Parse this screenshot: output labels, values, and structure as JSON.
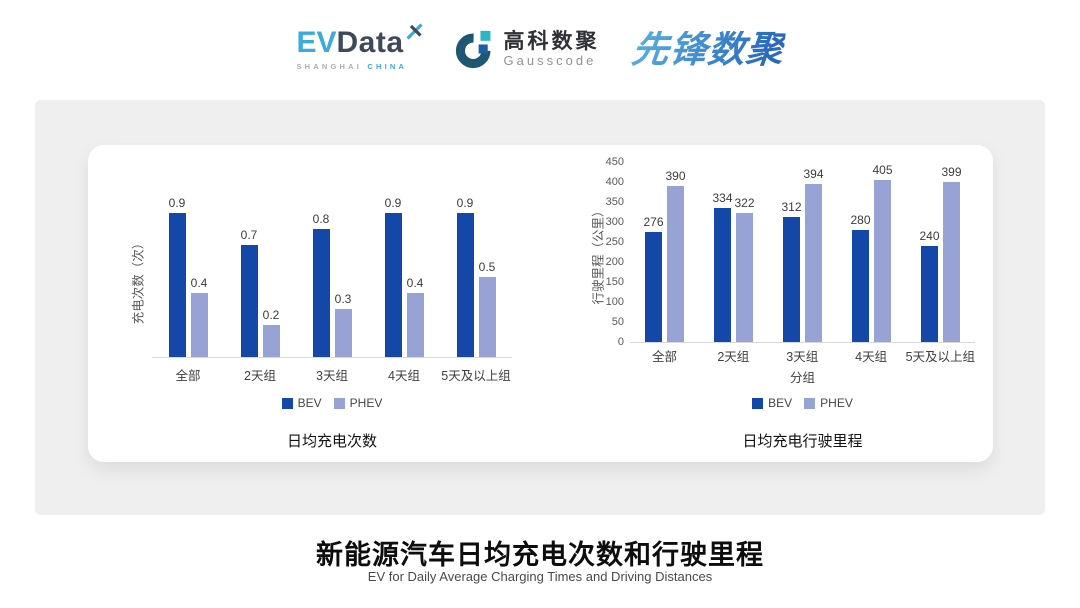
{
  "header": {
    "logos": {
      "evdata": {
        "ev": "EV",
        "data_word": "Data",
        "sub_left": "SHANGHAI",
        "sub_right": "CHINA"
      },
      "gausscode": {
        "cn": "高科数聚",
        "en": "Gausscode"
      },
      "pioneer": {
        "text": "先锋数聚"
      }
    }
  },
  "colors": {
    "bev": "#1347a8",
    "phev": "#98a3d5",
    "panel": "#efefef",
    "evdata_cyan": "#3aabdc",
    "evdata_dark": "#3f4a59",
    "gausscode_ring": "#1f5772",
    "gausscode_teal": "#2cb7c7",
    "gausscode_blue": "#1c5fa5",
    "pioneer_blue": "#2e79c9"
  },
  "footer": {
    "title": "新能源汽车日均充电次数和行驶里程",
    "subtitle": "EV for Daily Average Charging Times and Driving Distances"
  },
  "chart_data": [
    {
      "type": "bar",
      "title": "日均充电次数",
      "categories": [
        "全部",
        "2天组",
        "3天组",
        "4天组",
        "5天及以上组"
      ],
      "series": [
        {
          "name": "BEV",
          "values": [
            0.9,
            0.7,
            0.8,
            0.9,
            0.9
          ]
        },
        {
          "name": "PHEV",
          "values": [
            0.4,
            0.2,
            0.3,
            0.4,
            0.5
          ]
        }
      ],
      "xlabel": "",
      "ylabel": "充电次数（次）",
      "ylim": [
        0,
        1
      ],
      "grid": false,
      "legend_position": "bottom"
    },
    {
      "type": "bar",
      "title": "日均充电行驶里程",
      "categories": [
        "全部",
        "2天组",
        "3天组",
        "4天组",
        "5天及以上组"
      ],
      "series": [
        {
          "name": "BEV",
          "values": [
            276,
            334,
            312,
            280,
            240
          ]
        },
        {
          "name": "PHEV",
          "values": [
            390,
            322,
            394,
            405,
            399
          ]
        }
      ],
      "xlabel": "分组",
      "ylabel": "行驶里程（公里）",
      "ylim": [
        0,
        450
      ],
      "yticks": [
        0,
        50,
        100,
        150,
        200,
        250,
        300,
        350,
        400,
        450
      ],
      "grid": false,
      "legend_position": "bottom"
    }
  ]
}
